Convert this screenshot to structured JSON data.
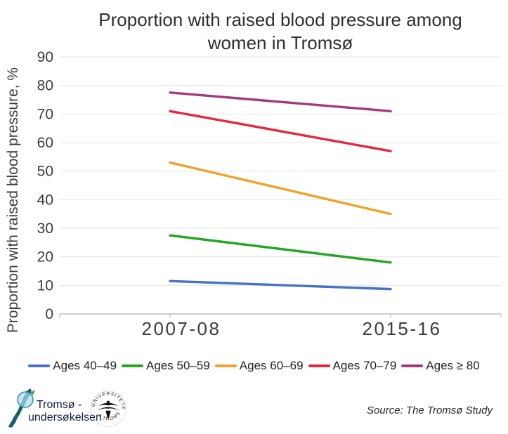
{
  "chart_data": {
    "type": "line",
    "title": "Proportion with raised blood pressure among women in Tromsø",
    "ylabel": "Proportion with raised blood pressure, %",
    "xlabel": "",
    "categories": [
      "2007-08",
      "2015-16"
    ],
    "series": [
      {
        "name": "Ages 40–49",
        "color": "#4472C4",
        "values": [
          11.5,
          8.7
        ]
      },
      {
        "name": "Ages 50–59",
        "color": "#28A428",
        "values": [
          27.5,
          18
        ]
      },
      {
        "name": "Ages 60–69",
        "color": "#F0A32C",
        "values": [
          53,
          35
        ]
      },
      {
        "name": "Ages 70–79",
        "color": "#E2293F",
        "values": [
          71,
          57
        ]
      },
      {
        "name": "Ages ≥ 80",
        "color": "#A23B7C",
        "values": [
          77.5,
          71
        ]
      }
    ],
    "ylim": [
      0,
      90
    ],
    "ytick_step": 10,
    "grid": true,
    "legend_position": "bottom",
    "gridline_color": "#E4E4E4",
    "axis_color": "#BFBFBF",
    "tick_text_color": "#3c3c3c"
  },
  "footer": {
    "logo": {
      "line1": "Tromsø -",
      "line2": "undersøkelsen"
    },
    "seal_top": "UNIVERSITETET",
    "seal_bottom": "I TROMSØ",
    "source": "Source: The Tromsø Study"
  }
}
